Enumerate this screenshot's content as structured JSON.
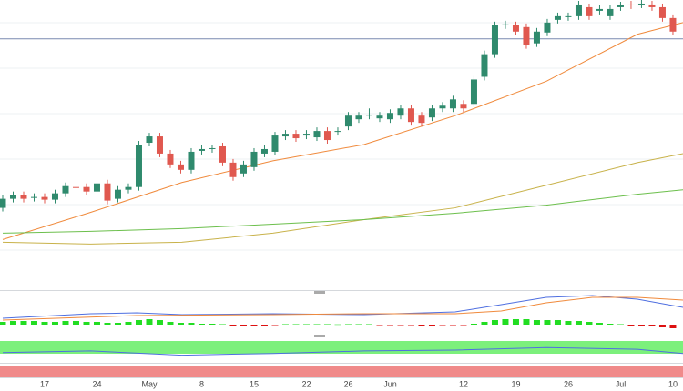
{
  "chart_data": [
    {
      "type": "candlestick",
      "x": [
        0,
        1,
        2,
        3,
        4,
        5,
        6,
        7,
        8,
        9,
        10,
        11,
        12,
        13,
        14,
        15,
        16,
        17,
        18,
        19,
        20,
        21,
        22,
        23,
        24,
        25,
        26,
        27,
        28,
        29,
        30,
        31,
        32,
        33,
        34,
        35,
        36,
        37,
        38,
        39,
        40,
        41,
        42,
        43,
        44,
        45,
        46,
        47,
        48,
        49,
        50,
        51,
        52,
        53,
        54,
        55,
        56,
        57,
        58,
        59,
        60,
        61,
        62,
        63,
        64
      ],
      "open": [
        90,
        100,
        104,
        101,
        102,
        99,
        106,
        113,
        113,
        108,
        117,
        100,
        110,
        113,
        162,
        169,
        150,
        138,
        132,
        153,
        155,
        158,
        140,
        128,
        135,
        150,
        152,
        169,
        172,
        170,
        168,
        175,
        174,
        180,
        188,
        192,
        189,
        188,
        192,
        200,
        192,
        190,
        200,
        200,
        205,
        205,
        235,
        260,
        292,
        292,
        290,
        272,
        284,
        298,
        301,
        302,
        312,
        308,
        302,
        312,
        315,
        315,
        315,
        312,
        300
      ],
      "high": [
        104,
        108,
        108,
        106,
        106,
        110,
        118,
        117,
        117,
        121,
        121,
        114,
        117,
        164,
        173,
        173,
        154,
        142,
        156,
        159,
        160,
        162,
        144,
        142,
        156,
        159,
        174,
        176,
        176,
        176,
        179,
        179,
        179,
        196,
        196,
        200,
        196,
        199,
        204,
        204,
        196,
        204,
        207,
        214,
        209,
        236,
        264,
        296,
        297,
        296,
        294,
        289,
        299,
        306,
        306,
        319,
        316,
        314,
        314,
        318,
        319,
        320,
        319,
        316,
        304
      ],
      "low": [
        86,
        96,
        96,
        97,
        95,
        95,
        102,
        108,
        104,
        104,
        94,
        96,
        106,
        109,
        158,
        146,
        134,
        128,
        128,
        149,
        151,
        136,
        120,
        124,
        131,
        146,
        148,
        165,
        163,
        166,
        164,
        161,
        170,
        176,
        184,
        188,
        185,
        184,
        188,
        181,
        180,
        186,
        196,
        196,
        196,
        201,
        231,
        256,
        288,
        281,
        266,
        268,
        280,
        294,
        297,
        298,
        298,
        304,
        298,
        308,
        310,
        311,
        308,
        296,
        281
      ],
      "close": [
        100,
        104,
        100,
        102,
        99,
        106,
        114,
        112,
        108,
        117,
        98,
        110,
        113,
        160,
        169,
        150,
        138,
        132,
        152,
        155,
        156,
        140,
        124,
        138,
        152,
        155,
        170,
        172,
        167,
        172,
        175,
        165,
        175,
        192,
        192,
        193,
        192,
        195,
        200,
        185,
        184,
        200,
        203,
        210,
        200,
        232,
        260,
        292,
        293,
        285,
        270,
        285,
        295,
        302,
        302,
        315,
        302,
        310,
        310,
        314,
        314,
        316,
        312,
        300,
        285
      ],
      "up_color": "#2f8a6d",
      "down_color": "#e0584f",
      "overlays": [
        {
          "color": "#f08a3c",
          "x": [
            0,
            8.4,
            17.1,
            25.8,
            34.5,
            43.2,
            51.9,
            60.6,
            64.96
          ],
          "values": [
            55,
            85,
            118,
            142,
            160,
            192,
            230,
            282,
            295
          ]
        },
        {
          "color": "#c8b24a",
          "x": [
            0,
            8.4,
            17.1,
            25.8,
            34.5,
            43.2,
            51.9,
            60.6,
            64.96
          ],
          "values": [
            52,
            50,
            52,
            62,
            77,
            90,
            115,
            140,
            150
          ]
        },
        {
          "color": "#6cbf4c",
          "x": [
            0,
            8.4,
            17.1,
            25.8,
            34.5,
            43.2,
            51.9,
            60.6,
            64.96
          ],
          "values": [
            62,
            64,
            67,
            72,
            77,
            84,
            93,
            105,
            110
          ]
        }
      ],
      "reference_line": 277,
      "reference_color": "#7a8ab0",
      "xlim": [
        -0.26,
        64.96
      ],
      "ylim": [
        0,
        320
      ],
      "xticks": [
        {
          "value": 4,
          "label": "17"
        },
        {
          "value": 9,
          "label": "24"
        },
        {
          "value": 14,
          "label": "May"
        },
        {
          "value": 19,
          "label": "8"
        },
        {
          "value": 24,
          "label": "15"
        },
        {
          "value": 29,
          "label": "22"
        },
        {
          "value": 33,
          "label": "26"
        },
        {
          "value": 37,
          "label": "Jun"
        },
        {
          "value": 44,
          "label": "12"
        },
        {
          "value": 49,
          "label": "19"
        },
        {
          "value": 54,
          "label": "26"
        },
        {
          "value": 59,
          "label": "Jul"
        },
        {
          "value": 64,
          "label": "10"
        }
      ]
    },
    {
      "type": "macd",
      "xlim": [
        -0.26,
        64.96
      ],
      "ylim": [
        -11,
        35
      ],
      "series": [
        {
          "color": "#4f6fe0",
          "x": [
            0,
            8.4,
            12.8,
            17.1,
            25.8,
            34.5,
            43.2,
            47.6,
            51.9,
            56.3,
            60.6,
            64.96
          ],
          "values": [
            7,
            12,
            13,
            11,
            12,
            11,
            14,
            22,
            30,
            32,
            28,
            19
          ]
        },
        {
          "color": "#f08a3c",
          "x": [
            0,
            12.8,
            25.8,
            34.5,
            43.2,
            47.6,
            51.9,
            56.3,
            60.6,
            64.96
          ],
          "values": [
            5,
            10,
            11,
            12,
            12,
            15,
            24,
            30,
            30,
            27
          ]
        }
      ],
      "histogram": [
        3,
        4,
        4,
        4,
        3,
        3,
        4,
        4,
        3,
        3,
        2,
        2,
        3,
        5,
        6,
        5,
        3,
        2,
        2,
        1,
        1,
        0.5,
        -2,
        -2,
        -1.5,
        -1,
        -0.5,
        0.5,
        0.5,
        0.5,
        0.5,
        0.5,
        0.3,
        0.5,
        0.5,
        0.5,
        -0.5,
        -0.5,
        -0.5,
        -0.5,
        -1,
        -1,
        -0.5,
        -0.5,
        -0.3,
        1,
        3,
        5,
        6,
        6,
        6,
        5,
        5,
        5,
        4,
        4,
        3,
        2,
        1,
        0.5,
        -1,
        -1.5,
        -2,
        -3,
        -4
      ],
      "up_color": "#22dd22",
      "down_color": "#dd1111"
    },
    {
      "type": "oscillator",
      "xlim": [
        -0.26,
        64.96
      ],
      "ylim": [
        0,
        28
      ],
      "series": [
        {
          "color": "#4f6fe0",
          "x": [
            0,
            8.4,
            17.1,
            25.8,
            34.5,
            43.2,
            51.9,
            60.6,
            64.96
          ],
          "values": [
            11,
            13,
            8,
            10,
            13,
            14,
            17,
            15,
            10
          ]
        }
      ],
      "band_color": "#7cf07c",
      "lower_band_color": "#f08a8a"
    }
  ]
}
